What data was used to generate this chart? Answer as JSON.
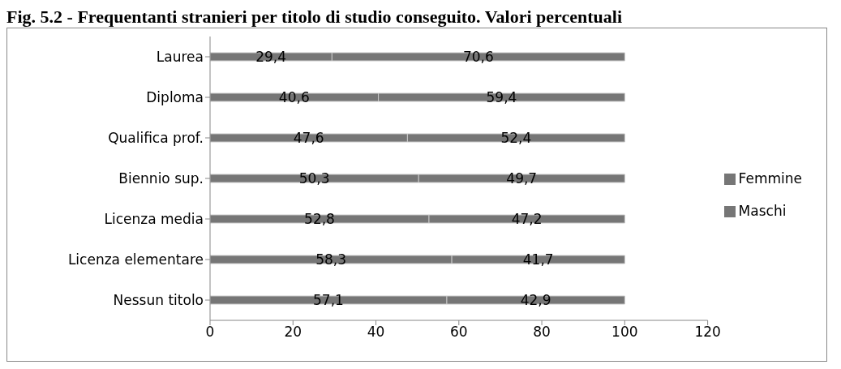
{
  "chart_data": {
    "type": "bar",
    "orientation": "horizontal",
    "stacked": true,
    "title": "Fig. 5.2 - Frequentanti stranieri per titolo di studio conseguito. Valori percentuali",
    "categories": [
      "Laurea",
      "Diploma",
      "Qualifica prof.",
      "Biennio sup.",
      "Licenza media",
      "Licenza elementare",
      "Nessun titolo"
    ],
    "series": [
      {
        "name": "Maschi",
        "color": "#767676",
        "values": [
          29.4,
          40.6,
          47.6,
          50.3,
          52.8,
          58.3,
          57.1
        ],
        "value_labels": [
          "29,4",
          "40,6",
          "47,6",
          "50,3",
          "52,8",
          "58,3",
          "57,1"
        ]
      },
      {
        "name": "Femmine",
        "color": "#767676",
        "values": [
          70.6,
          59.4,
          52.4,
          49.7,
          47.2,
          41.7,
          42.9
        ],
        "value_labels": [
          "70,6",
          "59,4",
          "52,4",
          "49,7",
          "47,2",
          "41,7",
          "42,9"
        ]
      }
    ],
    "xlim": [
      0,
      120
    ],
    "xticks": [
      0,
      20,
      40,
      60,
      80,
      100,
      120
    ],
    "grid": false,
    "legend": "right"
  }
}
